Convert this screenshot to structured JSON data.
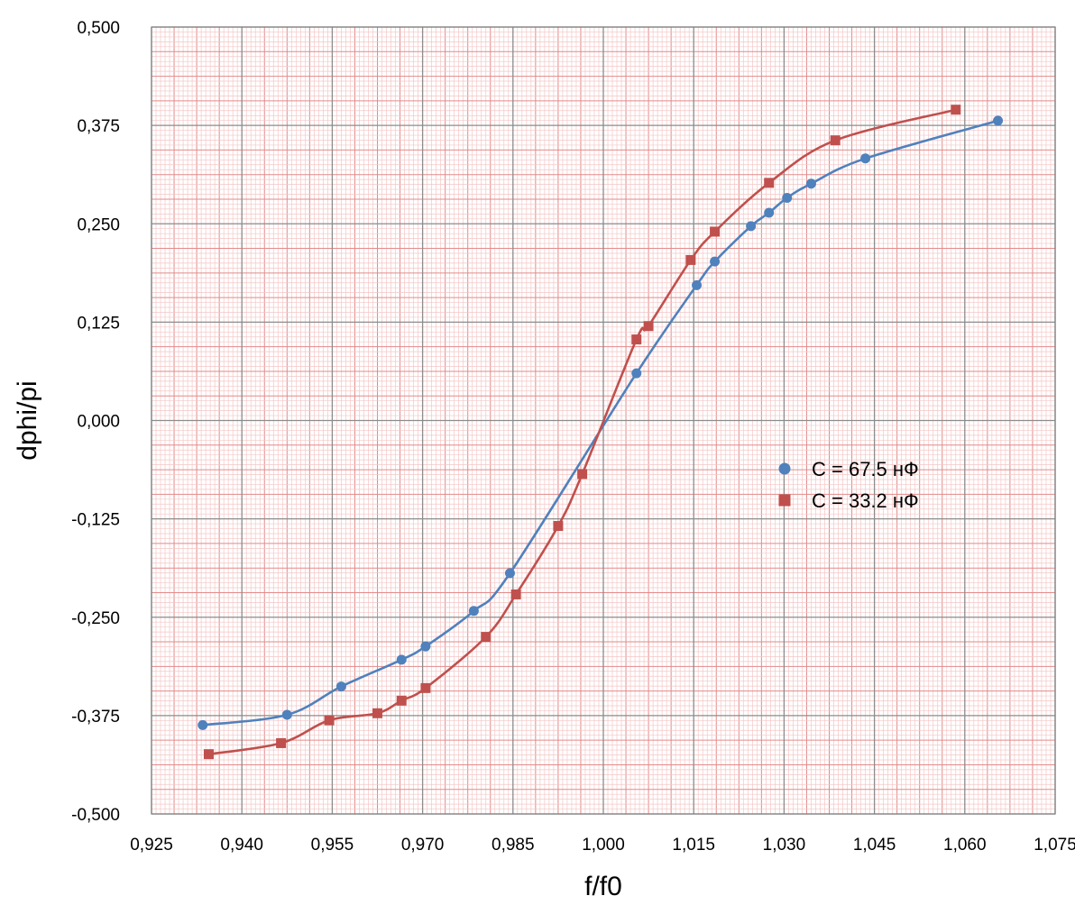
{
  "chart_data": {
    "type": "scatter",
    "title": "",
    "xlabel": "f/f0",
    "ylabel": "dphi/pi",
    "xlim": [
      0.925,
      1.075
    ],
    "ylim": [
      -0.5,
      0.5
    ],
    "x_ticks": [
      0.925,
      0.94,
      0.955,
      0.97,
      0.985,
      1.0,
      1.015,
      1.03,
      1.045,
      1.06,
      1.075
    ],
    "x_tick_labels": [
      "0,925",
      "0,940",
      "0,955",
      "0,970",
      "0,985",
      "1,000",
      "1,015",
      "1,030",
      "1,045",
      "1,060",
      "1,075"
    ],
    "y_ticks": [
      0.5,
      0.375,
      0.25,
      0.125,
      0.0,
      -0.125,
      -0.25,
      -0.375,
      -0.5
    ],
    "y_tick_labels": [
      "0,500",
      "0,375",
      "0,250",
      "0,125",
      "0,000",
      "-0,125",
      "-0,250",
      "-0,375",
      "-0,500"
    ],
    "grid": true,
    "legend_position": "right-center",
    "series": [
      {
        "name": "C = 67.5 нФ",
        "marker": "circle",
        "color": "#4f81bd",
        "x": [
          0.9335,
          0.9475,
          0.9565,
          0.9665,
          0.9705,
          0.9785,
          0.9845,
          1.0055,
          1.0155,
          1.0185,
          1.0245,
          1.0275,
          1.0305,
          1.0345,
          1.0435,
          1.0655
        ],
        "y": [
          -0.387,
          -0.374,
          -0.338,
          -0.304,
          -0.287,
          -0.242,
          -0.194,
          0.06,
          0.172,
          0.202,
          0.247,
          0.264,
          0.283,
          0.301,
          0.333,
          0.381
        ]
      },
      {
        "name": "C = 33.2 нФ",
        "marker": "square",
        "color": "#c0504d",
        "x": [
          0.9345,
          0.9465,
          0.9545,
          0.9625,
          0.9665,
          0.9705,
          0.9805,
          0.9855,
          0.9925,
          0.9965,
          1.0055,
          1.0075,
          1.0145,
          1.0185,
          1.0275,
          1.0385,
          1.0585
        ],
        "y": [
          -0.424,
          -0.41,
          -0.381,
          -0.372,
          -0.356,
          -0.34,
          -0.275,
          -0.221,
          -0.134,
          -0.068,
          0.103,
          0.12,
          0.204,
          0.24,
          0.302,
          0.356,
          0.395
        ]
      }
    ]
  }
}
